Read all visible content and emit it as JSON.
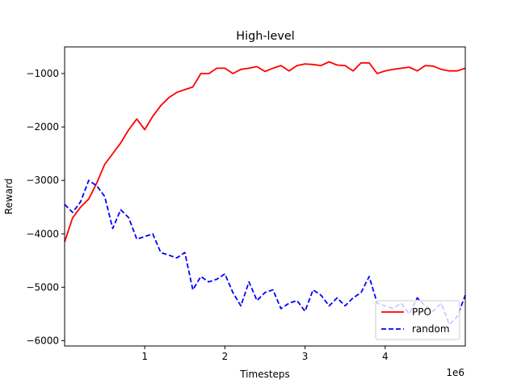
{
  "chart_data": {
    "type": "line",
    "title": "High-level",
    "xlabel": "Timesteps",
    "ylabel": "Reward",
    "x_offset_label": "1e6",
    "xlim": [
      0,
      5000000
    ],
    "ylim": [
      -6100,
      -500
    ],
    "x_ticks": [
      {
        "value": 1000000,
        "label": "1"
      },
      {
        "value": 2000000,
        "label": "2"
      },
      {
        "value": 3000000,
        "label": "3"
      },
      {
        "value": 4000000,
        "label": "4"
      }
    ],
    "y_ticks": [
      {
        "value": -1000,
        "label": "−1000"
      },
      {
        "value": -2000,
        "label": "−2000"
      },
      {
        "value": -3000,
        "label": "−3000"
      },
      {
        "value": -4000,
        "label": "−4000"
      },
      {
        "value": -5000,
        "label": "−5000"
      },
      {
        "value": -6000,
        "label": "−6000"
      }
    ],
    "grid": false,
    "legend_position": "lower-right",
    "series": [
      {
        "name": "PPO",
        "color": "#ff0000",
        "style": "solid",
        "x": [
          0,
          100000,
          200000,
          300000,
          400000,
          500000,
          600000,
          700000,
          800000,
          900000,
          1000000,
          1100000,
          1200000,
          1300000,
          1400000,
          1500000,
          1600000,
          1700000,
          1800000,
          1900000,
          2000000,
          2100000,
          2200000,
          2300000,
          2400000,
          2500000,
          2600000,
          2700000,
          2800000,
          2900000,
          3000000,
          3100000,
          3200000,
          3300000,
          3400000,
          3500000,
          3600000,
          3700000,
          3800000,
          3900000,
          4000000,
          4100000,
          4200000,
          4300000,
          4400000,
          4500000,
          4600000,
          4700000,
          4800000,
          4900000,
          5000000
        ],
        "y": [
          -4150,
          -3700,
          -3500,
          -3350,
          -3050,
          -2700,
          -2500,
          -2300,
          -2050,
          -1850,
          -2050,
          -1800,
          -1600,
          -1450,
          -1350,
          -1300,
          -1250,
          -1000,
          -1000,
          -900,
          -900,
          -1000,
          -920,
          -900,
          -870,
          -960,
          -900,
          -850,
          -950,
          -850,
          -820,
          -830,
          -850,
          -780,
          -840,
          -850,
          -950,
          -800,
          -800,
          -1000,
          -950,
          -920,
          -900,
          -880,
          -950,
          -850,
          -860,
          -920,
          -950,
          -950,
          -900
        ]
      },
      {
        "name": "random",
        "color": "#0000ff",
        "style": "dashed",
        "x": [
          0,
          100000,
          200000,
          300000,
          400000,
          500000,
          600000,
          700000,
          800000,
          900000,
          1000000,
          1100000,
          1200000,
          1300000,
          1400000,
          1500000,
          1600000,
          1700000,
          1800000,
          1900000,
          2000000,
          2100000,
          2200000,
          2300000,
          2400000,
          2500000,
          2600000,
          2700000,
          2800000,
          2900000,
          3000000,
          3100000,
          3200000,
          3300000,
          3400000,
          3500000,
          3600000,
          3700000,
          3800000,
          3900000,
          4000000,
          4100000,
          4200000,
          4300000,
          4400000,
          4500000,
          4600000,
          4700000,
          4800000,
          4900000,
          5000000
        ],
        "y": [
          -3450,
          -3600,
          -3400,
          -3000,
          -3100,
          -3300,
          -3900,
          -3550,
          -3700,
          -4100,
          -4050,
          -4000,
          -4350,
          -4400,
          -4450,
          -4350,
          -5050,
          -4800,
          -4900,
          -4850,
          -4750,
          -5100,
          -5350,
          -4900,
          -5250,
          -5100,
          -5050,
          -5400,
          -5300,
          -5250,
          -5450,
          -5050,
          -5150,
          -5350,
          -5200,
          -5350,
          -5200,
          -5100,
          -4800,
          -5300,
          -5350,
          -5400,
          -5300,
          -5500,
          -5200,
          -5350,
          -5450,
          -5300,
          -5700,
          -5550,
          -5150
        ]
      }
    ]
  }
}
